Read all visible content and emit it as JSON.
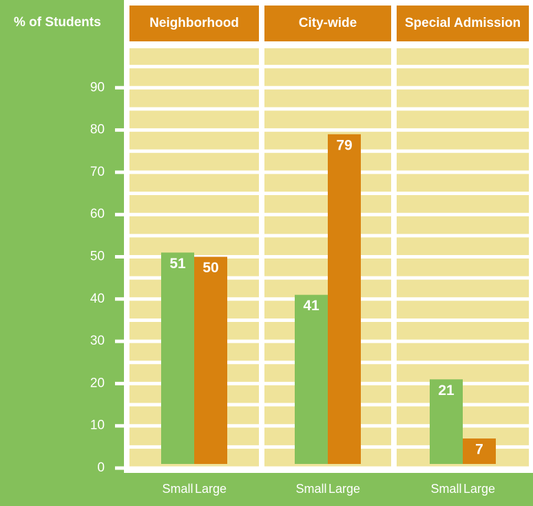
{
  "chart_data": {
    "type": "bar",
    "y_label": "% of Students",
    "categories": [
      "Neighborhood",
      "City-wide",
      "Special Admission"
    ],
    "series": [
      {
        "name": "Small",
        "color": "#84c05a",
        "values": [
          51,
          41,
          21
        ]
      },
      {
        "name": "Large",
        "color": "#d8820f",
        "values": [
          50,
          79,
          7
        ]
      }
    ],
    "ylim": [
      0,
      100
    ],
    "yticks": [
      0,
      10,
      20,
      30,
      40,
      50,
      60,
      70,
      80,
      90
    ],
    "minor_yticks": [
      5,
      15,
      25,
      35,
      45,
      55,
      65,
      75,
      85,
      95
    ],
    "grid": true
  }
}
